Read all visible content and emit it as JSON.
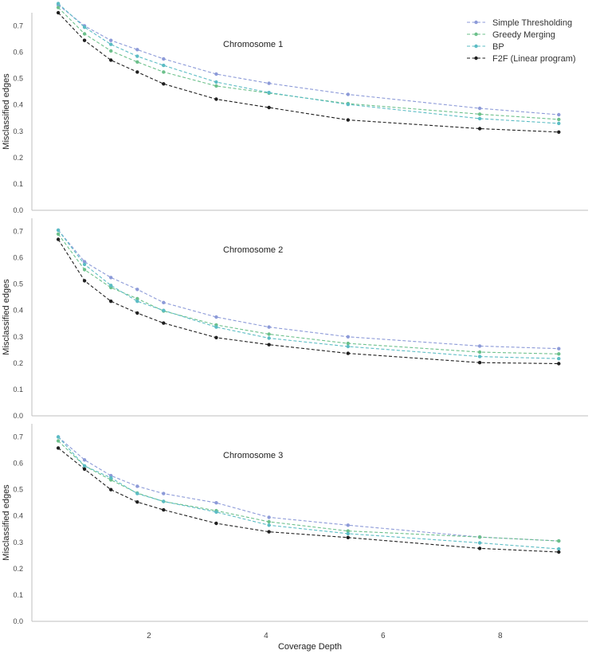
{
  "x_axis": {
    "label": "Coverage Depth",
    "ticks": [
      2,
      4,
      6,
      8
    ],
    "range": [
      0,
      9.5
    ]
  },
  "legend": {
    "placement": "top-right",
    "entries": [
      "Simple Thresholding",
      "Greedy Merging",
      "BP",
      "F2F (Linear program)"
    ]
  },
  "chart_data": [
    {
      "type": "line",
      "title": "Chromosome 1",
      "ylabel": "Misclassified edges",
      "ylim": [
        0,
        0.75
      ],
      "yticks": [
        "0.0",
        "0.1",
        "0.2",
        "0.3",
        "0.4",
        "0.5",
        "0.6",
        "0.7"
      ],
      "x": [
        0.45,
        0.9,
        1.35,
        1.8,
        2.25,
        3.15,
        4.05,
        5.4,
        7.65,
        9.0
      ],
      "series": [
        {
          "name": "Simple Thresholding",
          "color": "#8c9ad8",
          "values": [
            0.78,
            0.7,
            0.645,
            0.61,
            0.575,
            0.517,
            0.482,
            0.44,
            0.387,
            0.363
          ]
        },
        {
          "name": "Greedy Merging",
          "color": "#6cc08b",
          "values": [
            0.77,
            0.67,
            0.605,
            0.563,
            0.525,
            0.472,
            0.445,
            0.405,
            0.365,
            0.345
          ]
        },
        {
          "name": "BP",
          "color": "#5bbcc4",
          "values": [
            0.785,
            0.695,
            0.63,
            0.585,
            0.55,
            0.487,
            0.447,
            0.402,
            0.348,
            0.33
          ]
        },
        {
          "name": "F2F (Linear program)",
          "color": "#1f1f1f",
          "values": [
            0.75,
            0.645,
            0.57,
            0.525,
            0.48,
            0.422,
            0.39,
            0.343,
            0.31,
            0.297
          ]
        }
      ]
    },
    {
      "type": "line",
      "title": "Chromosome 2",
      "ylabel": "Misclassified edges",
      "ylim": [
        0,
        0.75
      ],
      "yticks": [
        "0.0",
        "0.1",
        "0.2",
        "0.3",
        "0.4",
        "0.5",
        "0.6",
        "0.7"
      ],
      "x": [
        0.45,
        0.9,
        1.35,
        1.8,
        2.25,
        3.15,
        4.05,
        5.4,
        7.65,
        9.0
      ],
      "series": [
        {
          "name": "Simple Thresholding",
          "color": "#8c9ad8",
          "values": [
            0.705,
            0.585,
            0.525,
            0.48,
            0.43,
            0.375,
            0.337,
            0.3,
            0.265,
            0.255
          ]
        },
        {
          "name": "Greedy Merging",
          "color": "#6cc08b",
          "values": [
            0.69,
            0.555,
            0.487,
            0.445,
            0.398,
            0.345,
            0.31,
            0.275,
            0.242,
            0.235
          ]
        },
        {
          "name": "BP",
          "color": "#5bbcc4",
          "values": [
            0.705,
            0.575,
            0.495,
            0.435,
            0.4,
            0.337,
            0.295,
            0.263,
            0.225,
            0.217
          ]
        },
        {
          "name": "F2F (Linear program)",
          "color": "#1f1f1f",
          "values": [
            0.67,
            0.513,
            0.435,
            0.39,
            0.352,
            0.297,
            0.27,
            0.237,
            0.202,
            0.198
          ]
        }
      ]
    },
    {
      "type": "line",
      "title": "Chromosome 3",
      "ylabel": "Misclassified edges",
      "ylim": [
        0,
        0.75
      ],
      "yticks": [
        "0.0",
        "0.1",
        "0.2",
        "0.3",
        "0.4",
        "0.5",
        "0.6",
        "0.7"
      ],
      "x": [
        0.45,
        0.9,
        1.35,
        1.8,
        2.25,
        3.15,
        4.05,
        5.4,
        7.65,
        9.0
      ],
      "series": [
        {
          "name": "Simple Thresholding",
          "color": "#8c9ad8",
          "values": [
            0.7,
            0.613,
            0.553,
            0.513,
            0.485,
            0.45,
            0.395,
            0.365,
            0.32,
            0.305
          ]
        },
        {
          "name": "Greedy Merging",
          "color": "#6cc08b",
          "values": [
            0.685,
            0.59,
            0.537,
            0.487,
            0.455,
            0.42,
            0.378,
            0.343,
            0.32,
            0.305
          ]
        },
        {
          "name": "BP",
          "color": "#5bbcc4",
          "values": [
            0.7,
            0.59,
            0.545,
            0.485,
            0.455,
            0.415,
            0.365,
            0.333,
            0.298,
            0.275
          ]
        },
        {
          "name": "F2F (Linear program)",
          "color": "#1f1f1f",
          "values": [
            0.658,
            0.578,
            0.5,
            0.453,
            0.423,
            0.372,
            0.34,
            0.318,
            0.277,
            0.263
          ]
        }
      ]
    }
  ]
}
